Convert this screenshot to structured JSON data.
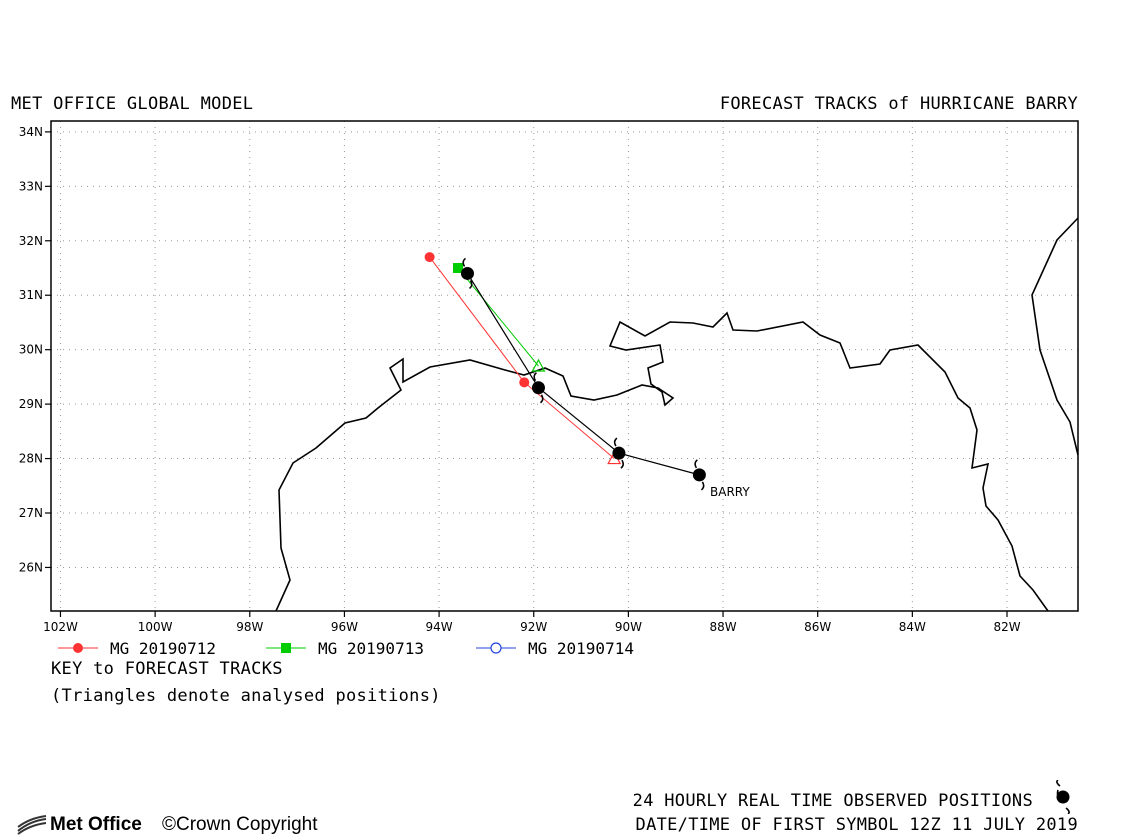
{
  "header": {
    "left_title": "MET OFFICE GLOBAL MODEL",
    "right_title": "FORECAST TRACKS of HURRICANE BARRY"
  },
  "map": {
    "lon_range": [
      -102.2,
      -80.5
    ],
    "lat_range": [
      25.2,
      34.2
    ],
    "lat_ticks": [
      {
        "value": 34,
        "label": "34N"
      },
      {
        "value": 33,
        "label": "33N"
      },
      {
        "value": 32,
        "label": "32N"
      },
      {
        "value": 31,
        "label": "31N"
      },
      {
        "value": 30,
        "label": "30N"
      },
      {
        "value": 29,
        "label": "29N"
      },
      {
        "value": 28,
        "label": "28N"
      },
      {
        "value": 27,
        "label": "27N"
      },
      {
        "value": 26,
        "label": "26N"
      }
    ],
    "lon_ticks": [
      {
        "value": -102,
        "label": "102W"
      },
      {
        "value": -100,
        "label": "100W"
      },
      {
        "value": -98,
        "label": "98W"
      },
      {
        "value": -96,
        "label": "96W"
      },
      {
        "value": -94,
        "label": "94W"
      },
      {
        "value": -92,
        "label": "92W"
      },
      {
        "value": -90,
        "label": "90W"
      },
      {
        "value": -88,
        "label": "88W"
      },
      {
        "value": -86,
        "label": "86W"
      },
      {
        "value": -84,
        "label": "84W"
      },
      {
        "value": -82,
        "label": "82W"
      }
    ],
    "grid": true,
    "storm_label": "BARRY",
    "colors": {
      "mg_20190712": "#ff3333",
      "mg_20190713": "#00cc00",
      "mg_20190714": "#2244dd",
      "coast": "#000000",
      "observed": "#000000"
    }
  },
  "observed_track": [
    {
      "lon": -88.5,
      "lat": 27.7
    },
    {
      "lon": -90.2,
      "lat": 28.1
    },
    {
      "lon": -91.9,
      "lat": 29.3
    },
    {
      "lon": -93.4,
      "lat": 31.4
    }
  ],
  "forecast_tracks": [
    {
      "name": "MG 20190712",
      "color": "#ff3333",
      "marker": "circle",
      "points": [
        {
          "lon": -90.3,
          "lat": 28.0
        },
        {
          "lon": -92.2,
          "lat": 29.4
        },
        {
          "lon": -94.2,
          "lat": 31.7
        }
      ]
    },
    {
      "name": "MG 20190713",
      "color": "#00cc00",
      "marker": "square",
      "points": [
        {
          "lon": -91.9,
          "lat": 29.7
        },
        {
          "lon": -93.6,
          "lat": 31.5
        }
      ]
    },
    {
      "name": "MG 20190714",
      "color": "#2244dd",
      "marker": "open-circle",
      "points": []
    }
  ],
  "key": {
    "title": "KEY to FORECAST TRACKS",
    "note": "(Triangles denote analysed positions)"
  },
  "footer": {
    "observed_note": "24 HOURLY REAL TIME OBSERVED POSITIONS",
    "first_symbol": "DATE/TIME OF FIRST SYMBOL 12Z 11 JULY 2019",
    "logo_text": "Met Office",
    "copyright": "Crown Copyright",
    "copyright_symbol": "©"
  }
}
